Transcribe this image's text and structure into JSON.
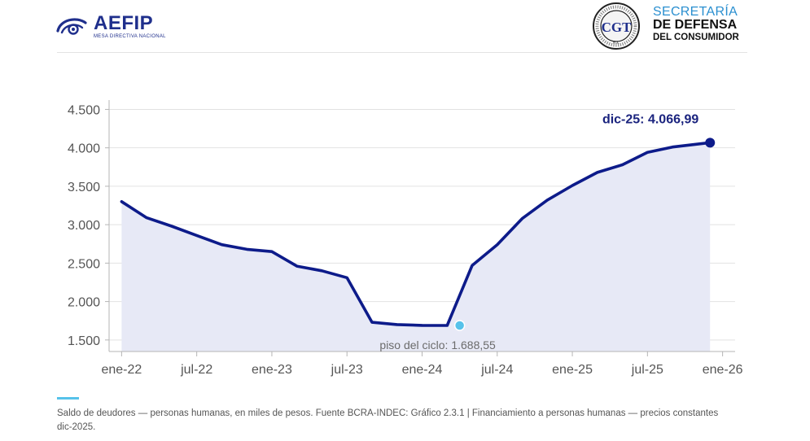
{
  "header": {
    "aefip_name": "AEFIP",
    "aefip_sub": "MESA DIRECTIVA NACIONAL",
    "cgt_seal_name": "CGT",
    "cgt_seal_ring": "CONFEDERACIÓN GENERAL DEL TRABAJO",
    "cgt_seal_ra": "R.A.",
    "sec_line1": "SECRETARÍA",
    "sec_line2": "DE DEFENSA",
    "sec_line3": "DEL CONSUMIDOR"
  },
  "chart_data": {
    "type": "area",
    "title": "",
    "xlabel": "",
    "ylabel": "",
    "ylim": [
      1350,
      4600
    ],
    "xlim": [
      "2021-12",
      "2026-02"
    ],
    "grid": true,
    "line_color": "#0d1b8a",
    "fill_color": "#e7e9f6",
    "x_ticks": [
      "ene-22",
      "jul-22",
      "ene-23",
      "jul-23",
      "ene-24",
      "jul-24",
      "ene-25",
      "jul-25",
      "ene-26"
    ],
    "x_tick_dates": [
      "2022-01",
      "2022-07",
      "2023-01",
      "2023-07",
      "2024-01",
      "2024-07",
      "2025-01",
      "2025-07",
      "2026-01"
    ],
    "y_ticks": [
      1500,
      2000,
      2500,
      3000,
      3500,
      4000,
      4500
    ],
    "y_tick_labels": [
      "1.500",
      "2.000",
      "2.500",
      "3.000",
      "3.500",
      "4.000",
      "4.500"
    ],
    "series": [
      {
        "x": [
          "2022-01",
          "2022-03",
          "2022-05",
          "2022-07",
          "2022-09",
          "2022-11",
          "2023-01",
          "2023-03",
          "2023-05",
          "2023-07",
          "2023-09",
          "2023-11",
          "2024-01",
          "2024-03",
          "2024-05",
          "2024-07",
          "2024-09",
          "2024-11",
          "2025-01",
          "2025-03",
          "2025-05",
          "2025-07",
          "2025-09",
          "2025-12"
        ],
        "values": [
          3300,
          3090,
          2980,
          2860,
          2740,
          2680,
          2650,
          2460,
          2400,
          2310,
          1730,
          1700,
          1690,
          1689,
          2470,
          2740,
          3080,
          3320,
          3510,
          3680,
          3780,
          3940,
          4010,
          4066.99
        ]
      }
    ],
    "annotations": [
      {
        "x": "2024-04",
        "y": 1688.55,
        "text": "piso del ciclo: 1.688,55",
        "marker_color": "#56c2ea"
      },
      {
        "x": "2025-12",
        "y": 4066.99,
        "text": "dic-25:  4.066,99",
        "marker_color": "#0d1b8a"
      }
    ]
  },
  "caption": "Saldo de deudores — personas humanas, en miles de pesos. Fuente BCRA-INDEC: Gráfico 2.3.1 | Financiamiento a personas humanas — precios constantes dic-2025."
}
